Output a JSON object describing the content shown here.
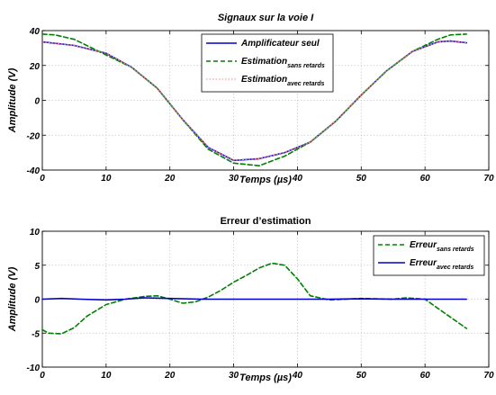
{
  "chart_data": [
    {
      "type": "line",
      "title": "Signaux sur la voie I",
      "xlabel": "Temps (µs)",
      "ylabel": "Amplitude (V)",
      "xlim": [
        0,
        70
      ],
      "ylim": [
        -40,
        40
      ],
      "xticks": [
        "0",
        "10",
        "20",
        "30",
        "40",
        "50",
        "60",
        "70"
      ],
      "yticks": [
        "40",
        "20",
        "0",
        "-20",
        "-40"
      ],
      "grid": true,
      "legend_position": "top-center",
      "series": [
        {
          "name": "Amplificateur seul",
          "legend_main": "Amplificateur seul",
          "legend_sub": "",
          "color": "#0000cc",
          "style": "solid",
          "x": [
            0,
            5,
            10,
            14,
            18,
            22,
            26,
            30,
            34,
            38,
            42,
            46,
            50,
            54,
            58,
            62,
            64,
            66.5
          ],
          "y": [
            33.5,
            31.5,
            27,
            19,
            7,
            -11,
            -27,
            -34.5,
            -33.5,
            -30,
            -24,
            -12,
            3,
            17,
            28,
            33.5,
            34,
            33
          ]
        },
        {
          "name": "Estimation sans retards",
          "legend_main": "Estimation",
          "legend_sub": "sans retards",
          "color": "#008000",
          "style": "dashed",
          "x": [
            0,
            2,
            5,
            10,
            14,
            18,
            22,
            26,
            30,
            34,
            38,
            42,
            46,
            50,
            54,
            58,
            62,
            64,
            66.5
          ],
          "y": [
            38,
            37.5,
            35,
            26,
            19,
            7,
            -11,
            -28,
            -36,
            -37.5,
            -32,
            -24,
            -12,
            3,
            17,
            28,
            35,
            37.5,
            38
          ]
        },
        {
          "name": "Estimation avec retards",
          "legend_main": "Estimation",
          "legend_sub": "avec retards",
          "color": "#ff8080",
          "style": "dotted",
          "x": [
            0,
            5,
            10,
            14,
            18,
            22,
            26,
            30,
            34,
            38,
            42,
            46,
            50,
            54,
            58,
            62,
            64,
            66.5
          ],
          "y": [
            33.5,
            31.5,
            27,
            19,
            7,
            -11,
            -27,
            -34.5,
            -33.5,
            -30,
            -24,
            -12,
            3,
            17,
            28,
            33.5,
            34,
            33
          ]
        }
      ]
    },
    {
      "type": "line",
      "title": "Erreur d’estimation",
      "xlabel": "Temps (µs)",
      "ylabel": "Amplitude (V)",
      "xlim": [
        0,
        70
      ],
      "ylim": [
        -10,
        10
      ],
      "xticks": [
        "0",
        "10",
        "20",
        "30",
        "40",
        "50",
        "60",
        "70"
      ],
      "yticks": [
        "10",
        "5",
        "0",
        "-5",
        "-10"
      ],
      "grid": true,
      "legend_position": "top-right",
      "series": [
        {
          "name": "Erreur sans retards",
          "legend_main": "Erreur",
          "legend_sub": "sans retards",
          "color": "#008000",
          "style": "dashed",
          "x": [
            0,
            1,
            3,
            5,
            7,
            10,
            13,
            16,
            18,
            20,
            22,
            24,
            26,
            28,
            30,
            32,
            34,
            36,
            38,
            40,
            42,
            45,
            50,
            55,
            57,
            60,
            63,
            66.5
          ],
          "y": [
            -4.5,
            -5,
            -5.1,
            -4.2,
            -2.5,
            -0.8,
            0,
            0.4,
            0.5,
            0,
            -0.6,
            -0.4,
            0.3,
            1.3,
            2.5,
            3.5,
            4.6,
            5.3,
            5,
            3,
            0.5,
            -0.1,
            0.1,
            0,
            0.2,
            0,
            -2,
            -4.3
          ]
        },
        {
          "name": "Erreur avec retards",
          "legend_main": "Erreur",
          "legend_sub": "avec retards",
          "color": "#0000cc",
          "style": "solid",
          "x": [
            0,
            3,
            6,
            10,
            13,
            16,
            20,
            25,
            30,
            35,
            40,
            45,
            50,
            55,
            60,
            66.5
          ],
          "y": [
            0,
            0.1,
            0,
            -0.1,
            0,
            0.2,
            0.1,
            0,
            0,
            0,
            0,
            0,
            0.05,
            0,
            0,
            0
          ]
        }
      ]
    }
  ]
}
